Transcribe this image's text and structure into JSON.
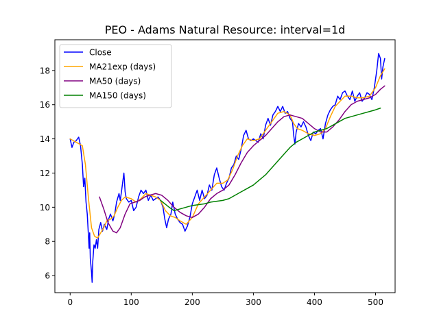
{
  "chart_data": {
    "type": "line",
    "title": "PEO - Adams Natural Resource: interval=1d",
    "xlabel": "",
    "ylabel": "",
    "xlim": [
      -25,
      532
    ],
    "ylim": [
      5.0,
      19.8
    ],
    "x_ticks": [
      0,
      100,
      200,
      300,
      400,
      500
    ],
    "y_ticks": [
      6,
      8,
      10,
      12,
      14,
      16,
      18
    ],
    "legend_position": "top-left",
    "grid": false,
    "series": [
      {
        "name": "Close",
        "color": "#0000ff",
        "points": [
          [
            0,
            14.0
          ],
          [
            3,
            13.5
          ],
          [
            6,
            13.8
          ],
          [
            10,
            13.9
          ],
          [
            14,
            14.1
          ],
          [
            17,
            13.6
          ],
          [
            20,
            12.5
          ],
          [
            22,
            11.2
          ],
          [
            24,
            11.7
          ],
          [
            26,
            10.3
          ],
          [
            28,
            9.6
          ],
          [
            30,
            8.3
          ],
          [
            31,
            7.6
          ],
          [
            32,
            8.5
          ],
          [
            33,
            7.0
          ],
          [
            34,
            6.6
          ],
          [
            35,
            6.2
          ],
          [
            36,
            5.6
          ],
          [
            37,
            6.8
          ],
          [
            39,
            7.8
          ],
          [
            41,
            7.6
          ],
          [
            43,
            8.1
          ],
          [
            45,
            7.6
          ],
          [
            47,
            8.7
          ],
          [
            50,
            9.1
          ],
          [
            53,
            8.6
          ],
          [
            56,
            9.0
          ],
          [
            60,
            8.7
          ],
          [
            63,
            9.3
          ],
          [
            66,
            9.6
          ],
          [
            70,
            9.2
          ],
          [
            73,
            9.6
          ],
          [
            76,
            10.3
          ],
          [
            80,
            10.8
          ],
          [
            82,
            10.4
          ],
          [
            84,
            10.9
          ],
          [
            88,
            12.0
          ],
          [
            90,
            10.9
          ],
          [
            92,
            10.5
          ],
          [
            96,
            10.3
          ],
          [
            100,
            10.4
          ],
          [
            104,
            9.8
          ],
          [
            108,
            10.0
          ],
          [
            112,
            10.6
          ],
          [
            116,
            11.0
          ],
          [
            120,
            10.8
          ],
          [
            124,
            11.0
          ],
          [
            128,
            10.4
          ],
          [
            132,
            10.7
          ],
          [
            136,
            10.4
          ],
          [
            140,
            10.5
          ],
          [
            144,
            10.6
          ],
          [
            148,
            10.4
          ],
          [
            152,
            10.0
          ],
          [
            155,
            9.3
          ],
          [
            158,
            8.8
          ],
          [
            161,
            9.3
          ],
          [
            165,
            9.6
          ],
          [
            168,
            10.3
          ],
          [
            172,
            9.6
          ],
          [
            176,
            9.3
          ],
          [
            180,
            9.1
          ],
          [
            184,
            9.0
          ],
          [
            188,
            8.6
          ],
          [
            192,
            8.9
          ],
          [
            196,
            9.4
          ],
          [
            200,
            10.2
          ],
          [
            204,
            10.6
          ],
          [
            208,
            11.0
          ],
          [
            212,
            10.4
          ],
          [
            216,
            11.0
          ],
          [
            220,
            10.5
          ],
          [
            224,
            10.7
          ],
          [
            228,
            11.3
          ],
          [
            232,
            11.0
          ],
          [
            236,
            11.9
          ],
          [
            240,
            12.3
          ],
          [
            244,
            11.7
          ],
          [
            248,
            11.2
          ],
          [
            252,
            11.0
          ],
          [
            256,
            11.4
          ],
          [
            260,
            11.7
          ],
          [
            264,
            12.3
          ],
          [
            268,
            12.5
          ],
          [
            272,
            13.0
          ],
          [
            276,
            12.8
          ],
          [
            280,
            13.4
          ],
          [
            284,
            14.2
          ],
          [
            288,
            14.5
          ],
          [
            292,
            14.0
          ],
          [
            296,
            13.9
          ],
          [
            300,
            14.0
          ],
          [
            304,
            13.9
          ],
          [
            308,
            13.8
          ],
          [
            312,
            14.3
          ],
          [
            316,
            14.0
          ],
          [
            320,
            14.8
          ],
          [
            324,
            15.2
          ],
          [
            328,
            14.8
          ],
          [
            332,
            15.4
          ],
          [
            336,
            15.6
          ],
          [
            340,
            15.9
          ],
          [
            344,
            15.6
          ],
          [
            348,
            15.9
          ],
          [
            352,
            15.5
          ],
          [
            356,
            15.6
          ],
          [
            360,
            15.2
          ],
          [
            364,
            15.0
          ],
          [
            366,
            14.2
          ],
          [
            368,
            13.7
          ],
          [
            370,
            14.4
          ],
          [
            374,
            14.9
          ],
          [
            378,
            14.7
          ],
          [
            382,
            15.0
          ],
          [
            386,
            14.7
          ],
          [
            390,
            14.2
          ],
          [
            394,
            13.9
          ],
          [
            398,
            14.4
          ],
          [
            402,
            14.3
          ],
          [
            406,
            14.5
          ],
          [
            410,
            14.6
          ],
          [
            414,
            14.0
          ],
          [
            418,
            14.9
          ],
          [
            422,
            15.4
          ],
          [
            426,
            15.7
          ],
          [
            430,
            15.9
          ],
          [
            434,
            16.0
          ],
          [
            438,
            16.5
          ],
          [
            442,
            16.3
          ],
          [
            446,
            16.7
          ],
          [
            450,
            16.8
          ],
          [
            454,
            16.5
          ],
          [
            458,
            16.3
          ],
          [
            462,
            16.8
          ],
          [
            466,
            16.2
          ],
          [
            470,
            16.5
          ],
          [
            474,
            16.7
          ],
          [
            478,
            16.2
          ],
          [
            482,
            16.4
          ],
          [
            486,
            16.7
          ],
          [
            490,
            16.6
          ],
          [
            494,
            16.3
          ],
          [
            498,
            17.0
          ],
          [
            502,
            18.0
          ],
          [
            505,
            19.0
          ],
          [
            508,
            18.7
          ],
          [
            510,
            17.5
          ],
          [
            512,
            18.2
          ],
          [
            515,
            18.7
          ]
        ]
      },
      {
        "name": "MA21exp (days)",
        "color": "#ffa500",
        "points": [
          [
            0,
            14.0
          ],
          [
            10,
            13.8
          ],
          [
            20,
            13.6
          ],
          [
            25,
            12.5
          ],
          [
            30,
            10.5
          ],
          [
            35,
            8.8
          ],
          [
            40,
            8.3
          ],
          [
            45,
            8.2
          ],
          [
            50,
            8.5
          ],
          [
            55,
            8.8
          ],
          [
            60,
            9.2
          ],
          [
            66,
            9.3
          ],
          [
            72,
            9.5
          ],
          [
            78,
            10.0
          ],
          [
            84,
            10.4
          ],
          [
            90,
            10.6
          ],
          [
            100,
            10.5
          ],
          [
            108,
            10.3
          ],
          [
            116,
            10.5
          ],
          [
            124,
            10.8
          ],
          [
            132,
            10.7
          ],
          [
            140,
            10.6
          ],
          [
            148,
            10.4
          ],
          [
            156,
            9.8
          ],
          [
            164,
            9.5
          ],
          [
            172,
            9.4
          ],
          [
            180,
            9.2
          ],
          [
            190,
            9.0
          ],
          [
            200,
            9.4
          ],
          [
            210,
            10.2
          ],
          [
            220,
            10.6
          ],
          [
            230,
            11.0
          ],
          [
            240,
            11.4
          ],
          [
            250,
            11.4
          ],
          [
            258,
            11.6
          ],
          [
            266,
            12.2
          ],
          [
            274,
            13.0
          ],
          [
            282,
            13.6
          ],
          [
            290,
            14.0
          ],
          [
            300,
            13.9
          ],
          [
            310,
            14.0
          ],
          [
            320,
            14.5
          ],
          [
            330,
            15.0
          ],
          [
            340,
            15.5
          ],
          [
            350,
            15.6
          ],
          [
            360,
            15.4
          ],
          [
            366,
            14.9
          ],
          [
            372,
            14.6
          ],
          [
            380,
            14.5
          ],
          [
            390,
            14.3
          ],
          [
            400,
            14.2
          ],
          [
            410,
            14.3
          ],
          [
            418,
            14.6
          ],
          [
            426,
            15.3
          ],
          [
            434,
            15.9
          ],
          [
            442,
            16.2
          ],
          [
            450,
            16.5
          ],
          [
            460,
            16.5
          ],
          [
            470,
            16.4
          ],
          [
            480,
            16.4
          ],
          [
            490,
            16.5
          ],
          [
            500,
            17.0
          ],
          [
            508,
            17.7
          ],
          [
            515,
            18.1
          ]
        ]
      },
      {
        "name": "MA50 (days)",
        "color": "#800080",
        "points": [
          [
            48,
            10.6
          ],
          [
            55,
            9.9
          ],
          [
            62,
            9.1
          ],
          [
            70,
            8.6
          ],
          [
            76,
            8.5
          ],
          [
            82,
            8.8
          ],
          [
            90,
            9.6
          ],
          [
            98,
            10.2
          ],
          [
            106,
            10.3
          ],
          [
            114,
            10.4
          ],
          [
            122,
            10.6
          ],
          [
            130,
            10.7
          ],
          [
            140,
            10.8
          ],
          [
            150,
            10.7
          ],
          [
            160,
            10.4
          ],
          [
            170,
            10.0
          ],
          [
            180,
            9.7
          ],
          [
            190,
            9.5
          ],
          [
            200,
            9.4
          ],
          [
            210,
            9.6
          ],
          [
            220,
            10.0
          ],
          [
            230,
            10.5
          ],
          [
            240,
            10.8
          ],
          [
            250,
            11.0
          ],
          [
            260,
            11.3
          ],
          [
            270,
            11.9
          ],
          [
            280,
            12.6
          ],
          [
            290,
            13.2
          ],
          [
            300,
            13.6
          ],
          [
            310,
            13.9
          ],
          [
            320,
            14.2
          ],
          [
            330,
            14.6
          ],
          [
            340,
            15.0
          ],
          [
            350,
            15.3
          ],
          [
            360,
            15.4
          ],
          [
            370,
            15.3
          ],
          [
            380,
            15.2
          ],
          [
            390,
            14.9
          ],
          [
            400,
            14.6
          ],
          [
            410,
            14.4
          ],
          [
            420,
            14.4
          ],
          [
            430,
            14.7
          ],
          [
            440,
            15.1
          ],
          [
            450,
            15.6
          ],
          [
            460,
            16.0
          ],
          [
            470,
            16.2
          ],
          [
            480,
            16.3
          ],
          [
            490,
            16.4
          ],
          [
            500,
            16.6
          ],
          [
            508,
            16.9
          ],
          [
            515,
            17.1
          ]
        ]
      },
      {
        "name": "MA150 (days)",
        "color": "#008000",
        "points": [
          [
            148,
            10.4
          ],
          [
            155,
            10.2
          ],
          [
            162,
            10.0
          ],
          [
            170,
            9.8
          ],
          [
            180,
            9.9
          ],
          [
            190,
            10.0
          ],
          [
            200,
            10.1
          ],
          [
            210,
            10.15
          ],
          [
            220,
            10.2
          ],
          [
            230,
            10.3
          ],
          [
            240,
            10.35
          ],
          [
            250,
            10.4
          ],
          [
            260,
            10.5
          ],
          [
            270,
            10.7
          ],
          [
            280,
            10.9
          ],
          [
            290,
            11.1
          ],
          [
            300,
            11.3
          ],
          [
            310,
            11.6
          ],
          [
            320,
            11.9
          ],
          [
            330,
            12.3
          ],
          [
            340,
            12.7
          ],
          [
            350,
            13.1
          ],
          [
            360,
            13.5
          ],
          [
            370,
            13.8
          ],
          [
            380,
            14.0
          ],
          [
            390,
            14.2
          ],
          [
            400,
            14.4
          ],
          [
            410,
            14.5
          ],
          [
            420,
            14.6
          ],
          [
            430,
            14.8
          ],
          [
            440,
            15.0
          ],
          [
            450,
            15.2
          ],
          [
            460,
            15.3
          ],
          [
            470,
            15.4
          ],
          [
            480,
            15.5
          ],
          [
            490,
            15.6
          ],
          [
            500,
            15.7
          ],
          [
            508,
            15.8
          ]
        ]
      }
    ]
  }
}
